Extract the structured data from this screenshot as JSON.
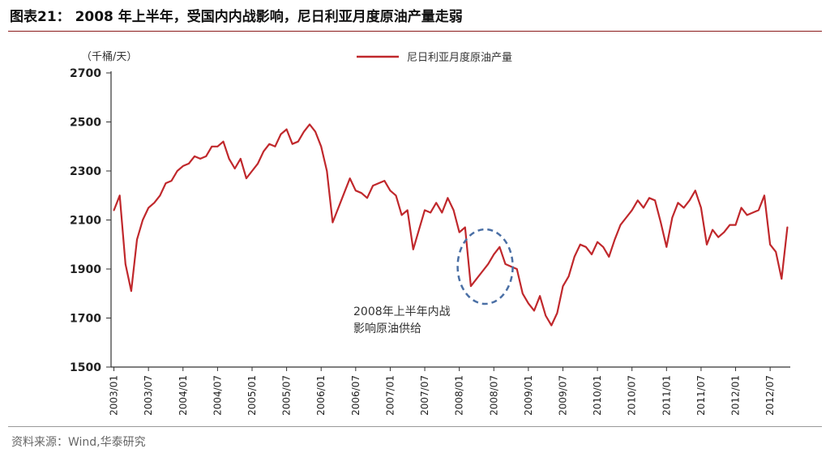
{
  "figure": {
    "title": "图表21：  2008 年上半年，受国内内战影响，尼日利亚月度原油产量走弱",
    "source": "资料来源：Wind,华泰研究"
  },
  "colors": {
    "line": "#c0282c",
    "annotation": "#4a6fa5",
    "axis": "#333333",
    "rule": "#8a1a1a"
  },
  "chart_data": {
    "type": "line",
    "unit_label": "（千桶/天）",
    "legend": {
      "label": "尼日利亚月度原油产量",
      "placement": "top-center"
    },
    "ylim": [
      1500,
      2700
    ],
    "yticks": [
      1500,
      1700,
      1900,
      2100,
      2300,
      2500,
      2700
    ],
    "xticks": [
      "2003/01",
      "2003/07",
      "2004/01",
      "2004/07",
      "2005/01",
      "2005/07",
      "2006/01",
      "2006/07",
      "2007/01",
      "2007/07",
      "2008/01",
      "2008/07",
      "2009/01",
      "2009/07",
      "2010/01",
      "2010/07",
      "2011/01",
      "2011/07",
      "2012/01",
      "2012/07"
    ],
    "grid": false,
    "annotation": {
      "text_line1": "2008年上半年内战",
      "text_line2": "影响原油供给",
      "period": [
        "2008/03",
        "2008/08"
      ]
    },
    "series": [
      {
        "name": "尼日利亚月度原油产量",
        "start": "2003/01",
        "values": [
          2140,
          2200,
          1920,
          1810,
          2020,
          2100,
          2150,
          2170,
          2200,
          2250,
          2260,
          2300,
          2320,
          2330,
          2360,
          2350,
          2360,
          2400,
          2400,
          2420,
          2350,
          2310,
          2350,
          2270,
          2300,
          2330,
          2380,
          2410,
          2400,
          2450,
          2470,
          2410,
          2420,
          2460,
          2490,
          2460,
          2400,
          2300,
          2090,
          2150,
          2210,
          2270,
          2220,
          2210,
          2190,
          2240,
          2250,
          2260,
          2220,
          2200,
          2120,
          2140,
          1980,
          2060,
          2140,
          2130,
          2170,
          2130,
          2190,
          2140,
          2050,
          2070,
          1830,
          1860,
          1890,
          1920,
          1960,
          1990,
          1920,
          1910,
          1900,
          1800,
          1760,
          1730,
          1790,
          1710,
          1670,
          1720,
          1830,
          1870,
          1950,
          2000,
          1990,
          1960,
          2010,
          1990,
          1950,
          2020,
          2080,
          2110,
          2140,
          2180,
          2150,
          2190,
          2180,
          2090,
          1990,
          2110,
          2170,
          2150,
          2180,
          2220,
          2150,
          2000,
          2060,
          2030,
          2050,
          2080,
          2080,
          2150,
          2120,
          2130,
          2140,
          2200,
          2000,
          1970,
          1860,
          2070
        ]
      }
    ]
  }
}
